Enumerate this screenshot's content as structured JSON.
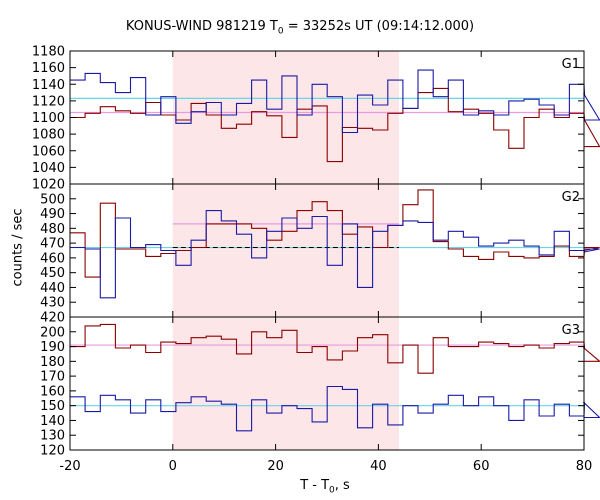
{
  "title": {
    "main": "KONUS-WIND 981219 T",
    "sub": "0",
    "rest": " = 33252s UT (09:14:12.000)"
  },
  "xlabel": {
    "main": "T - T",
    "sub": "0",
    "rest": ", s"
  },
  "ylabel": "counts / sec",
  "colors": {
    "red": "#8b0000",
    "blue": "#1a1aa6",
    "cyan": "#66d6e8",
    "pink": "#e89be0",
    "shade": "#fde6e8"
  },
  "chart_data": {
    "type": "line",
    "step": true,
    "x_range": [
      -20,
      80
    ],
    "x_ticks": [
      -20,
      0,
      20,
      40,
      60,
      80
    ],
    "x_tick_labels": [
      "-20",
      "0",
      "20",
      "40",
      "60",
      "80"
    ],
    "shaded_interval": [
      0,
      44
    ],
    "bin_start": -20,
    "bin_width": 2.944,
    "panels": [
      {
        "label": "G1",
        "ylim": [
          1020,
          1180
        ],
        "yticks": [
          1020,
          1040,
          1060,
          1080,
          1100,
          1120,
          1140,
          1160,
          1180
        ],
        "ytick_labels": [
          "1020",
          "1040",
          "1060",
          "1080",
          "1100",
          "1120",
          "1140",
          "1160",
          "1180"
        ],
        "series": [
          {
            "color": "red",
            "values": [
              1100,
              1105,
              1113,
              1108,
              1105,
              1118,
              1103,
              1097,
              1117,
              1103,
              1087,
              1092,
              1107,
              1102,
              1076,
              1110,
              1114,
              1047,
              1088,
              1087,
              1085,
              1105,
              1111,
              1130,
              1135,
              1107,
              1110,
              1105,
              1085,
              1063,
              1100,
              1110,
              1100,
              1105,
              1098,
              1065
            ]
          },
          {
            "color": "blue",
            "values": [
              1145,
              1153,
              1142,
              1130,
              1148,
              1103,
              1125,
              1093,
              1107,
              1118,
              1103,
              1117,
              1145,
              1110,
              1150,
              1103,
              1140,
              1125,
              1082,
              1127,
              1115,
              1145,
              1111,
              1157,
              1125,
              1145,
              1103,
              1108,
              1103,
              1120,
              1122,
              1115,
              1103,
              1140,
              1128,
              1097
            ]
          }
        ],
        "ref_lines": [
          {
            "color": "cyan",
            "y": 1123,
            "dashed": false
          },
          {
            "color": "pink",
            "y": 1106,
            "dashed": false
          }
        ]
      },
      {
        "label": "G2",
        "ylim": [
          420,
          510
        ],
        "yticks": [
          420,
          430,
          440,
          450,
          460,
          470,
          480,
          490,
          500,
          510
        ],
        "ytick_labels": [
          "420",
          "430",
          "440",
          "450",
          "460",
          "470",
          "480",
          "490",
          "500",
          "510"
        ],
        "series": [
          {
            "color": "red",
            "values": [
              477,
              447,
              497,
              466,
              466,
              461,
              463,
              465,
              467,
              483,
              483,
              483,
              480,
              472,
              478,
              492,
              498,
              492,
              476,
              481,
              467,
              482,
              496,
              506,
              471,
              466,
              461,
              459,
              464,
              461,
              460,
              461,
              468,
              461,
              465,
              467
            ]
          },
          {
            "color": "blue",
            "values": [
              467,
              466,
              433,
              487,
              467,
              469,
              465,
              455,
              472,
              492,
              485,
              476,
              460,
              478,
              487,
              480,
              488,
              455,
              483,
              440,
              478,
              482,
              485,
              484,
              472,
              478,
              474,
              468,
              470,
              472,
              468,
              462,
              478,
              465,
              464,
              466
            ]
          }
        ],
        "ref_lines": [
          {
            "color": "cyan",
            "y": 467,
            "dashed": false
          },
          {
            "color": "pink",
            "y": 483,
            "dashed": false,
            "from": 0,
            "to": 44
          },
          {
            "color": "black",
            "y": 467,
            "dashed": true,
            "from": 0,
            "to": 44
          }
        ]
      },
      {
        "label": "G3",
        "ylim": [
          120,
          210
        ],
        "yticks": [
          120,
          130,
          140,
          150,
          160,
          170,
          180,
          190,
          200,
          210
        ],
        "ytick_labels": [
          "120",
          "130",
          "140",
          "150",
          "160",
          "170",
          "180",
          "190",
          "200",
          "210"
        ],
        "series": [
          {
            "color": "red",
            "values": [
              190,
              204,
              205,
              189,
              191,
              186,
              193,
              192,
              196,
              197,
              195,
              185,
              200,
              196,
              201,
              186,
              190,
              181,
              187,
              196,
              198,
              179,
              191,
              172,
              196,
              190,
              190,
              193,
              192,
              190,
              191,
              189,
              192,
              193,
              189,
              180
            ]
          },
          {
            "color": "blue",
            "values": [
              156,
              146,
              157,
              154,
              145,
              154,
              146,
              152,
              156,
              153,
              151,
              133,
              154,
              145,
              150,
              148,
              139,
              163,
              161,
              135,
              151,
              137,
              150,
              145,
              151,
              157,
              150,
              156,
              150,
              140,
              154,
              143,
              151,
              143,
              152,
              142
            ]
          }
        ],
        "ref_lines": [
          {
            "color": "cyan",
            "y": 150,
            "dashed": false
          },
          {
            "color": "pink",
            "y": 191,
            "dashed": false
          }
        ]
      }
    ]
  }
}
